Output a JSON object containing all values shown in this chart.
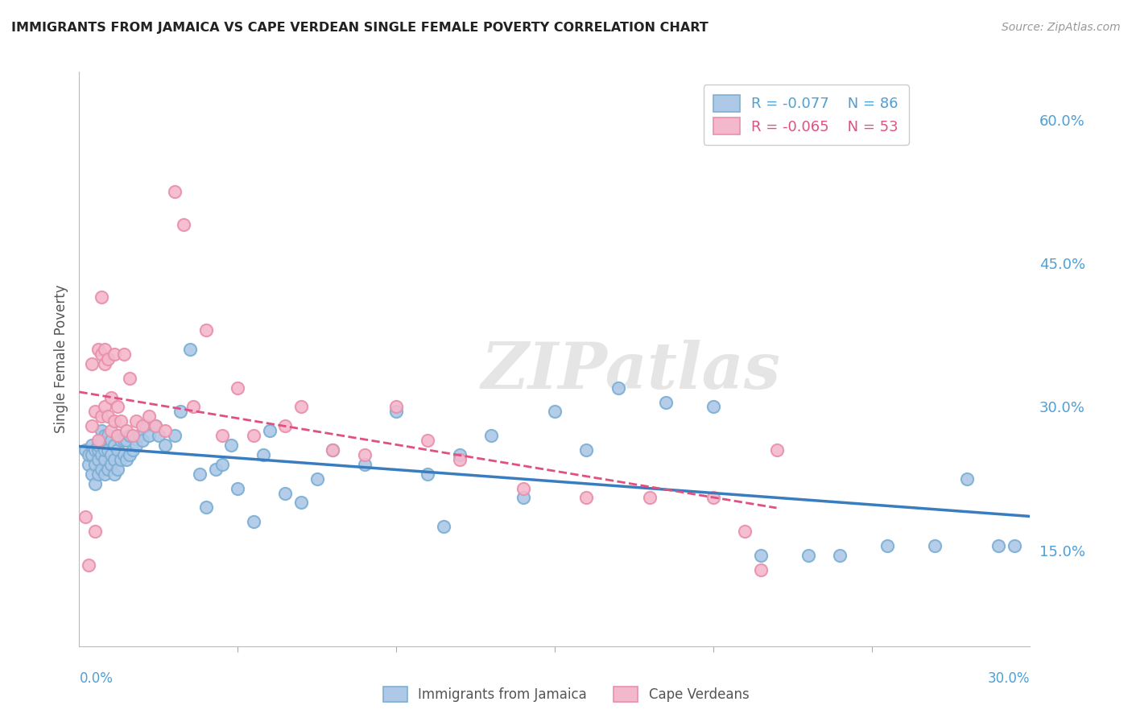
{
  "title": "IMMIGRANTS FROM JAMAICA VS CAPE VERDEAN SINGLE FEMALE POVERTY CORRELATION CHART",
  "source": "Source: ZipAtlas.com",
  "ylabel": "Single Female Poverty",
  "right_yticks": [
    "60.0%",
    "45.0%",
    "30.0%",
    "15.0%"
  ],
  "right_ytick_vals": [
    0.6,
    0.45,
    0.3,
    0.15
  ],
  "legend_blue_r": "-0.077",
  "legend_blue_n": "86",
  "legend_pink_r": "-0.065",
  "legend_pink_n": "53",
  "legend_blue_label": "Immigrants from Jamaica",
  "legend_pink_label": "Cape Verdeans",
  "watermark": "ZIPatlas",
  "blue_fill_color": "#aec8e8",
  "pink_fill_color": "#f4b8cc",
  "blue_edge_color": "#7bafd4",
  "pink_edge_color": "#e890aa",
  "blue_line_color": "#3a7dbf",
  "pink_line_color": "#e05080",
  "background_color": "#ffffff",
  "grid_color": "#cccccc",
  "title_color": "#222222",
  "right_axis_color": "#4f9fd4",
  "legend_color": "#4f9fd4",
  "xlim": [
    0.0,
    0.3
  ],
  "ylim": [
    0.05,
    0.65
  ],
  "blue_scatter_x": [
    0.002,
    0.003,
    0.003,
    0.004,
    0.004,
    0.004,
    0.005,
    0.005,
    0.005,
    0.006,
    0.006,
    0.006,
    0.006,
    0.007,
    0.007,
    0.007,
    0.007,
    0.008,
    0.008,
    0.008,
    0.008,
    0.009,
    0.009,
    0.009,
    0.01,
    0.01,
    0.01,
    0.011,
    0.011,
    0.011,
    0.012,
    0.012,
    0.012,
    0.013,
    0.013,
    0.014,
    0.014,
    0.015,
    0.015,
    0.016,
    0.016,
    0.017,
    0.018,
    0.019,
    0.02,
    0.021,
    0.022,
    0.024,
    0.025,
    0.027,
    0.03,
    0.032,
    0.035,
    0.038,
    0.04,
    0.043,
    0.045,
    0.048,
    0.05,
    0.055,
    0.058,
    0.06,
    0.065,
    0.07,
    0.075,
    0.08,
    0.09,
    0.1,
    0.11,
    0.115,
    0.12,
    0.13,
    0.14,
    0.15,
    0.16,
    0.17,
    0.185,
    0.2,
    0.215,
    0.23,
    0.24,
    0.255,
    0.27,
    0.28,
    0.29,
    0.295
  ],
  "blue_scatter_y": [
    0.255,
    0.24,
    0.25,
    0.23,
    0.25,
    0.26,
    0.22,
    0.24,
    0.255,
    0.23,
    0.245,
    0.255,
    0.26,
    0.235,
    0.25,
    0.265,
    0.275,
    0.23,
    0.245,
    0.255,
    0.27,
    0.235,
    0.255,
    0.27,
    0.24,
    0.25,
    0.265,
    0.23,
    0.245,
    0.26,
    0.235,
    0.255,
    0.27,
    0.245,
    0.265,
    0.25,
    0.265,
    0.245,
    0.265,
    0.25,
    0.27,
    0.255,
    0.26,
    0.27,
    0.265,
    0.28,
    0.27,
    0.28,
    0.27,
    0.26,
    0.27,
    0.295,
    0.36,
    0.23,
    0.195,
    0.235,
    0.24,
    0.26,
    0.215,
    0.18,
    0.25,
    0.275,
    0.21,
    0.2,
    0.225,
    0.255,
    0.24,
    0.295,
    0.23,
    0.175,
    0.25,
    0.27,
    0.205,
    0.295,
    0.255,
    0.32,
    0.305,
    0.3,
    0.145,
    0.145,
    0.145,
    0.155,
    0.155,
    0.225,
    0.155,
    0.155
  ],
  "pink_scatter_x": [
    0.002,
    0.003,
    0.004,
    0.004,
    0.005,
    0.005,
    0.006,
    0.006,
    0.007,
    0.007,
    0.007,
    0.008,
    0.008,
    0.008,
    0.009,
    0.009,
    0.01,
    0.01,
    0.011,
    0.011,
    0.012,
    0.012,
    0.013,
    0.014,
    0.015,
    0.016,
    0.017,
    0.018,
    0.02,
    0.022,
    0.024,
    0.027,
    0.03,
    0.033,
    0.036,
    0.04,
    0.045,
    0.05,
    0.055,
    0.065,
    0.07,
    0.08,
    0.09,
    0.1,
    0.11,
    0.12,
    0.14,
    0.16,
    0.18,
    0.2,
    0.21,
    0.215,
    0.22
  ],
  "pink_scatter_y": [
    0.185,
    0.135,
    0.28,
    0.345,
    0.17,
    0.295,
    0.265,
    0.36,
    0.29,
    0.355,
    0.415,
    0.3,
    0.345,
    0.36,
    0.29,
    0.35,
    0.275,
    0.31,
    0.285,
    0.355,
    0.27,
    0.3,
    0.285,
    0.355,
    0.275,
    0.33,
    0.27,
    0.285,
    0.28,
    0.29,
    0.28,
    0.275,
    0.525,
    0.49,
    0.3,
    0.38,
    0.27,
    0.32,
    0.27,
    0.28,
    0.3,
    0.255,
    0.25,
    0.3,
    0.265,
    0.245,
    0.215,
    0.205,
    0.205,
    0.205,
    0.17,
    0.13,
    0.255
  ]
}
